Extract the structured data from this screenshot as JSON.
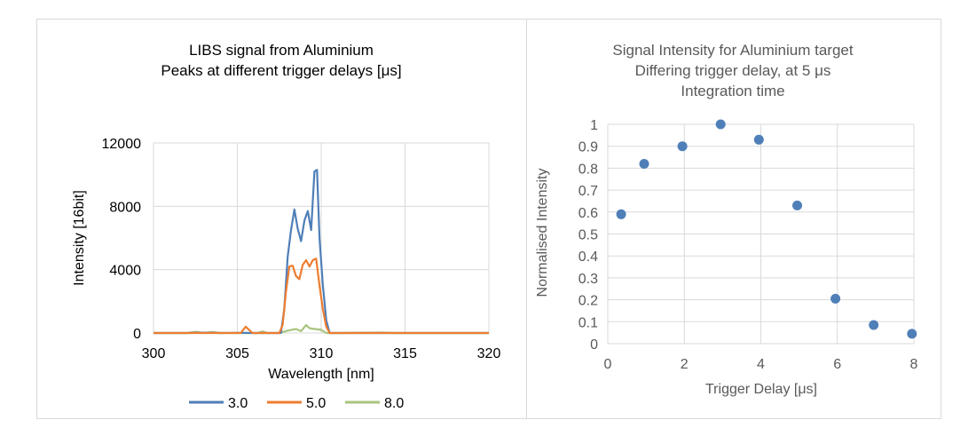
{
  "chart_data": [
    {
      "type": "line",
      "title": [
        "LIBS signal from Aluminium",
        "Peaks at different trigger delays [μs]"
      ],
      "xlabel": "Wavelength [nm]",
      "ylabel": "Intensity [16bit]",
      "xlim": [
        300,
        320
      ],
      "ylim": [
        0,
        12000
      ],
      "x_ticks": [
        "300",
        "305",
        "310",
        "315",
        "320"
      ],
      "y_ticks": [
        "0",
        "4000",
        "8000",
        "12000"
      ],
      "grid": true,
      "legend_position": "bottom",
      "series": [
        {
          "name": "3.0",
          "color": "#4f7fb8",
          "points": [
            [
              300,
              0
            ],
            [
              302,
              0
            ],
            [
              303,
              20
            ],
            [
              304,
              0
            ],
            [
              305,
              10
            ],
            [
              306,
              0
            ],
            [
              307,
              0
            ],
            [
              307.6,
              0
            ],
            [
              307.8,
              1500
            ],
            [
              308.0,
              4800
            ],
            [
              308.2,
              6500
            ],
            [
              308.4,
              7800
            ],
            [
              308.6,
              6600
            ],
            [
              308.8,
              5800
            ],
            [
              309.0,
              7100
            ],
            [
              309.2,
              7700
            ],
            [
              309.4,
              6500
            ],
            [
              309.6,
              10200
            ],
            [
              309.75,
              10300
            ],
            [
              309.9,
              6000
            ],
            [
              310.1,
              3000
            ],
            [
              310.3,
              800
            ],
            [
              310.5,
              0
            ],
            [
              311,
              0
            ],
            [
              314,
              0
            ],
            [
              320,
              0
            ]
          ]
        },
        {
          "name": "5.0",
          "color": "#ed7d31",
          "points": [
            [
              300,
              0
            ],
            [
              304.5,
              0
            ],
            [
              305.2,
              0
            ],
            [
              305.5,
              400
            ],
            [
              305.7,
              200
            ],
            [
              305.9,
              0
            ],
            [
              307.5,
              0
            ],
            [
              307.7,
              500
            ],
            [
              307.9,
              2600
            ],
            [
              308.1,
              4200
            ],
            [
              308.3,
              4250
            ],
            [
              308.5,
              3600
            ],
            [
              308.7,
              3400
            ],
            [
              308.9,
              4300
            ],
            [
              309.1,
              4600
            ],
            [
              309.3,
              4200
            ],
            [
              309.5,
              4600
            ],
            [
              309.7,
              4700
            ],
            [
              309.9,
              3000
            ],
            [
              310.1,
              1500
            ],
            [
              310.3,
              400
            ],
            [
              310.5,
              0
            ],
            [
              320,
              0
            ]
          ]
        },
        {
          "name": "8.0",
          "color": "#a9c47f",
          "points": [
            [
              300,
              0
            ],
            [
              302,
              0
            ],
            [
              302.5,
              80
            ],
            [
              303,
              0
            ],
            [
              303.5,
              60
            ],
            [
              304,
              0
            ],
            [
              306.2,
              0
            ],
            [
              306.5,
              100
            ],
            [
              306.8,
              0
            ],
            [
              307.5,
              0
            ],
            [
              308,
              150
            ],
            [
              308.5,
              250
            ],
            [
              308.8,
              120
            ],
            [
              309.1,
              500
            ],
            [
              309.3,
              300
            ],
            [
              309.6,
              250
            ],
            [
              310,
              200
            ],
            [
              310.3,
              0
            ],
            [
              311,
              0
            ],
            [
              313.5,
              30
            ],
            [
              314.5,
              0
            ],
            [
              320,
              0
            ]
          ]
        }
      ]
    },
    {
      "type": "scatter",
      "title": [
        "Signal Intensity for Aluminium  target",
        "Differing trigger delay, at 5 μs",
        "Integration time"
      ],
      "xlabel": "Trigger Delay  [μs]",
      "ylabel": "Normalised Intensity",
      "xlim": [
        0,
        8
      ],
      "ylim": [
        0,
        1
      ],
      "x_ticks": [
        "0",
        "2",
        "4",
        "6",
        "8"
      ],
      "y_ticks": [
        "0",
        "0.1",
        "0.2",
        "0.3",
        "0.4",
        "0.5",
        "0.6",
        "0.7",
        "0.8",
        "0.9",
        "1"
      ],
      "grid": true,
      "color": "#4f7fb8",
      "x": [
        0.35,
        0.95,
        1.95,
        2.95,
        3.95,
        4.95,
        5.95,
        6.95,
        7.95
      ],
      "y": [
        0.59,
        0.82,
        0.9,
        1.0,
        0.93,
        0.63,
        0.205,
        0.085,
        0.045
      ]
    }
  ]
}
